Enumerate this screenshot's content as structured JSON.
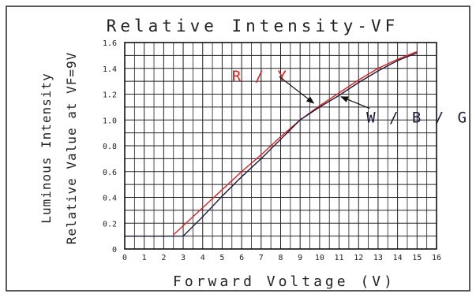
{
  "chart_data": {
    "type": "line",
    "title": "Relative Intensity-VF",
    "xlabel": "Forward Voltage (V)",
    "ylabel_lines": [
      "Luminous Intensity",
      "Relative Value at VF=9V"
    ],
    "xlim": [
      0,
      16
    ],
    "ylim": [
      0,
      1.6
    ],
    "x_ticks": [
      "0",
      "1",
      "2",
      "3",
      "4",
      "5",
      "6",
      "7",
      "8",
      "9",
      "10",
      "11",
      "12",
      "13",
      "14",
      "15",
      "16"
    ],
    "y_ticks": [
      "0",
      "0.2",
      "0.4",
      "0.6",
      "0.8",
      "1.0",
      "1.2",
      "1.4",
      "1.6"
    ],
    "grid": true,
    "series": [
      {
        "name": "R/Y",
        "label_text": "R / Y",
        "color": "#e02020",
        "x": [
          2.5,
          4,
          5,
          6,
          7,
          8,
          9,
          10,
          11,
          12,
          13,
          14,
          15
        ],
        "y": [
          0.11,
          0.32,
          0.46,
          0.6,
          0.73,
          0.87,
          1.0,
          1.11,
          1.21,
          1.31,
          1.4,
          1.47,
          1.53
        ],
        "lead_y": [
          0.1,
          0.1
        ]
      },
      {
        "name": "W/B/G",
        "label_text": "W / B / G",
        "color": "#1a1a3a",
        "x": [
          3,
          4,
          5,
          6,
          7,
          8,
          9,
          10,
          11,
          12,
          13,
          14,
          15
        ],
        "y": [
          0.1,
          0.25,
          0.41,
          0.56,
          0.7,
          0.85,
          1.0,
          1.1,
          1.19,
          1.29,
          1.38,
          1.46,
          1.52
        ],
        "lead_y": [
          0.1,
          0.1
        ]
      }
    ],
    "annotations": [
      {
        "series": "R/Y",
        "label_anchor_data": [
          5.5,
          1.3
        ],
        "arrow_to_data": [
          9.7,
          1.13
        ]
      },
      {
        "series": "W/B/G",
        "label_anchor_data": [
          12.4,
          0.98
        ],
        "arrow_to_data": [
          11.1,
          1.18
        ]
      }
    ]
  }
}
